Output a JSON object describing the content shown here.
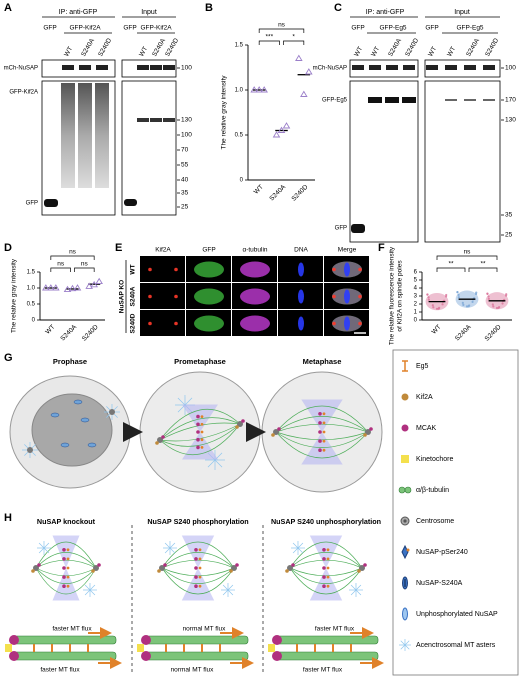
{
  "panel_labels": [
    "A",
    "B",
    "C",
    "D",
    "E",
    "F",
    "G",
    "H"
  ],
  "blot_a": {
    "ip": "IP: anti-GFP",
    "input": "Input",
    "groups": [
      "GFP",
      "GFP-Kif2A",
      "GFP",
      "GFP-Kif2A"
    ],
    "lanes": [
      "WT",
      "S240A",
      "S240D",
      "WT",
      "S240A",
      "S240D"
    ],
    "rows": [
      "mCh-NuSAP",
      "GFP-Kif2A",
      "GFP"
    ],
    "markers": [
      100,
      130,
      100,
      70,
      55,
      40,
      35,
      25
    ]
  },
  "blot_c": {
    "ip": "IP: anti-GFP",
    "input": "Input",
    "groups": [
      "GFP",
      "GFP-Eg5",
      "GFP",
      "GFP-Eg5"
    ],
    "lanes": [
      "WT",
      "WT",
      "S240A",
      "S240D",
      "WT",
      "WT",
      "S240A",
      "S240D"
    ],
    "rows": [
      "mCh-NuSAP",
      "GFP-Eg5",
      "GFP"
    ],
    "markers": [
      100,
      170,
      130,
      35,
      25
    ]
  },
  "chart_data": [
    {
      "type": "scatter",
      "ylabel": "The relative gray intensity",
      "categories": [
        "WT",
        "S240A",
        "S240D"
      ],
      "values": [
        1.0,
        0.55,
        1.17
      ],
      "points": [
        [
          1.0,
          1.0,
          1.0
        ],
        [
          0.5,
          0.55,
          0.6
        ],
        [
          1.35,
          0.95,
          1.2
        ]
      ],
      "color": "#9b7fc9",
      "ylim": [
        0,
        1.5
      ],
      "yticks": [
        0,
        0.5,
        {
          "value": 1,
          "label": "1.0"
        },
        1.5
      ],
      "annotations": [
        "ns",
        "***",
        "*"
      ]
    },
    {
      "type": "scatter",
      "ylabel": "The relative gray intensity",
      "categories": [
        "WT",
        "S240A",
        "S240D"
      ],
      "values": [
        1.0,
        0.97,
        1.12
      ],
      "points": [
        [
          1.0,
          1.0,
          1.0
        ],
        [
          0.95,
          0.98,
          1.0
        ],
        [
          1.05,
          1.1,
          1.2
        ]
      ],
      "color": "#9b7fc9",
      "ylim": [
        0,
        1.5
      ],
      "yticks": [
        0,
        0.5,
        {
          "value": 1,
          "label": "1.0"
        },
        1.5
      ],
      "annotations": [
        "ns",
        "ns",
        "ns"
      ]
    },
    {
      "type": "scatter",
      "ylabel": [
        "The relative fluorescence intensity",
        "of Kif2A on spindle poles"
      ],
      "categories": [
        "WT",
        "S240A",
        "S240D"
      ],
      "values": [
        2.3,
        2.6,
        2.4
      ],
      "colors": [
        "#d9739a",
        "#7aa6d6",
        "#d9739a"
      ],
      "ylim": [
        0,
        6
      ],
      "yticks": [
        0,
        1,
        2,
        3,
        4,
        5,
        6
      ],
      "annotations": [
        "ns",
        "**",
        "**"
      ]
    }
  ],
  "imaging": {
    "columns": [
      "Kif2A",
      "GFP",
      "α-tubulin",
      "DNA",
      "Merge"
    ],
    "rows": [
      "WT",
      "S240A",
      "S240D"
    ],
    "group": "NuSAP KO"
  },
  "model": {
    "stages": [
      "Prophase",
      "Prometaphase",
      "Metaphase"
    ],
    "legend": [
      "Eg5",
      "Kif2A",
      "MCAK",
      "Kinetochore",
      "α/β-tubulin",
      "Centrosome",
      "NuSAP-pSer240",
      "NuSAP-S240A",
      "Unphosphorylated NuSAP",
      "Acenctrosomal MT asters"
    ]
  },
  "mechanism": {
    "titles": [
      "NuSAP knockout",
      "NuSAP S240 phosphorylation",
      "NuSAP S240 unphosphorylation"
    ],
    "flux": [
      "faster MT flux",
      "faster MT flux",
      "normal MT flux",
      "normal MT flux",
      "faster MT flux",
      "faster MT flux"
    ]
  }
}
